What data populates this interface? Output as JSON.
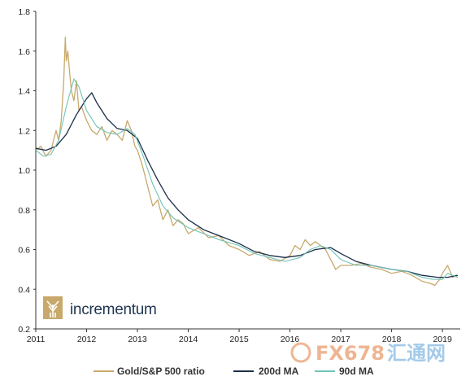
{
  "chart_data": {
    "type": "line",
    "xlabel": "",
    "ylabel": "",
    "xlim": [
      2011.0,
      2019.35
    ],
    "ylim": [
      0.2,
      1.8
    ],
    "y_ticks": [
      "0.2",
      "0.4",
      "0.6",
      "0.8",
      "1.0",
      "1.2",
      "1.4",
      "1.6",
      "1.8"
    ],
    "x_ticks": [
      "2011",
      "2012",
      "2013",
      "2014",
      "2015",
      "2016",
      "2017",
      "2018",
      "2019"
    ],
    "grid": false,
    "legend": "bottom",
    "series": [
      {
        "name": "Gold/S&P 500 ratio",
        "color": "#c8a96b",
        "x": [
          2011.0,
          2011.1,
          2011.2,
          2011.3,
          2011.35,
          2011.4,
          2011.45,
          2011.5,
          2011.55,
          2011.58,
          2011.6,
          2011.63,
          2011.67,
          2011.7,
          2011.75,
          2011.8,
          2011.85,
          2011.9,
          2012.0,
          2012.1,
          2012.2,
          2012.3,
          2012.4,
          2012.5,
          2012.6,
          2012.7,
          2012.8,
          2012.88,
          2012.95,
          2013.0,
          2013.1,
          2013.2,
          2013.3,
          2013.4,
          2013.5,
          2013.6,
          2013.7,
          2013.8,
          2013.9,
          2014.0,
          2014.2,
          2014.4,
          2014.6,
          2014.8,
          2015.0,
          2015.2,
          2015.4,
          2015.6,
          2015.8,
          2016.0,
          2016.1,
          2016.2,
          2016.3,
          2016.4,
          2016.5,
          2016.6,
          2016.7,
          2016.8,
          2016.9,
          2017.0,
          2017.2,
          2017.4,
          2017.6,
          2017.8,
          2018.0,
          2018.2,
          2018.4,
          2018.6,
          2018.75,
          2018.85,
          2018.95,
          2019.0,
          2019.1,
          2019.2,
          2019.3
        ],
        "values": [
          1.1,
          1.12,
          1.07,
          1.1,
          1.15,
          1.2,
          1.15,
          1.25,
          1.45,
          1.67,
          1.55,
          1.6,
          1.48,
          1.4,
          1.35,
          1.45,
          1.3,
          1.32,
          1.25,
          1.2,
          1.18,
          1.22,
          1.15,
          1.2,
          1.18,
          1.15,
          1.25,
          1.2,
          1.12,
          1.1,
          1.02,
          0.92,
          0.82,
          0.85,
          0.75,
          0.8,
          0.72,
          0.75,
          0.73,
          0.68,
          0.71,
          0.66,
          0.67,
          0.62,
          0.6,
          0.57,
          0.59,
          0.55,
          0.54,
          0.57,
          0.62,
          0.6,
          0.65,
          0.62,
          0.64,
          0.62,
          0.6,
          0.55,
          0.5,
          0.52,
          0.52,
          0.53,
          0.51,
          0.5,
          0.48,
          0.49,
          0.47,
          0.44,
          0.43,
          0.42,
          0.45,
          0.48,
          0.52,
          0.46,
          0.47
        ]
      },
      {
        "name": "200d MA",
        "color": "#1c2e4a",
        "x": [
          2011.0,
          2011.2,
          2011.4,
          2011.6,
          2011.8,
          2012.0,
          2012.1,
          2012.2,
          2012.4,
          2012.6,
          2012.8,
          2013.0,
          2013.2,
          2013.4,
          2013.6,
          2013.8,
          2014.0,
          2014.3,
          2014.6,
          2015.0,
          2015.3,
          2015.6,
          2015.9,
          2016.2,
          2016.5,
          2016.8,
          2017.0,
          2017.3,
          2017.6,
          2018.0,
          2018.3,
          2018.6,
          2018.9,
          2019.1,
          2019.3
        ],
        "values": [
          1.11,
          1.1,
          1.12,
          1.18,
          1.28,
          1.36,
          1.39,
          1.34,
          1.26,
          1.21,
          1.2,
          1.16,
          1.05,
          0.95,
          0.86,
          0.8,
          0.75,
          0.7,
          0.67,
          0.63,
          0.59,
          0.57,
          0.56,
          0.57,
          0.6,
          0.61,
          0.58,
          0.54,
          0.52,
          0.5,
          0.49,
          0.47,
          0.46,
          0.46,
          0.47
        ]
      },
      {
        "name": "90d MA",
        "color": "#6fc3b7",
        "x": [
          2011.0,
          2011.15,
          2011.3,
          2011.45,
          2011.6,
          2011.75,
          2011.85,
          2012.0,
          2012.2,
          2012.4,
          2012.6,
          2012.8,
          2012.95,
          2013.1,
          2013.3,
          2013.5,
          2013.7,
          2014.0,
          2014.3,
          2014.6,
          2015.0,
          2015.3,
          2015.6,
          2015.9,
          2016.2,
          2016.4,
          2016.6,
          2016.8,
          2017.0,
          2017.3,
          2017.6,
          2018.0,
          2018.3,
          2018.6,
          2018.8,
          2019.0,
          2019.1,
          2019.3
        ],
        "values": [
          1.1,
          1.07,
          1.08,
          1.15,
          1.32,
          1.46,
          1.42,
          1.3,
          1.22,
          1.19,
          1.18,
          1.21,
          1.18,
          1.08,
          0.93,
          0.82,
          0.76,
          0.71,
          0.68,
          0.65,
          0.62,
          0.58,
          0.56,
          0.54,
          0.56,
          0.6,
          0.62,
          0.6,
          0.55,
          0.52,
          0.52,
          0.5,
          0.49,
          0.46,
          0.45,
          0.45,
          0.48,
          0.46
        ]
      }
    ]
  },
  "brand": {
    "name": "incrementum"
  },
  "watermark": {
    "fx_text": "FX678",
    "cn_text": "汇通网"
  }
}
